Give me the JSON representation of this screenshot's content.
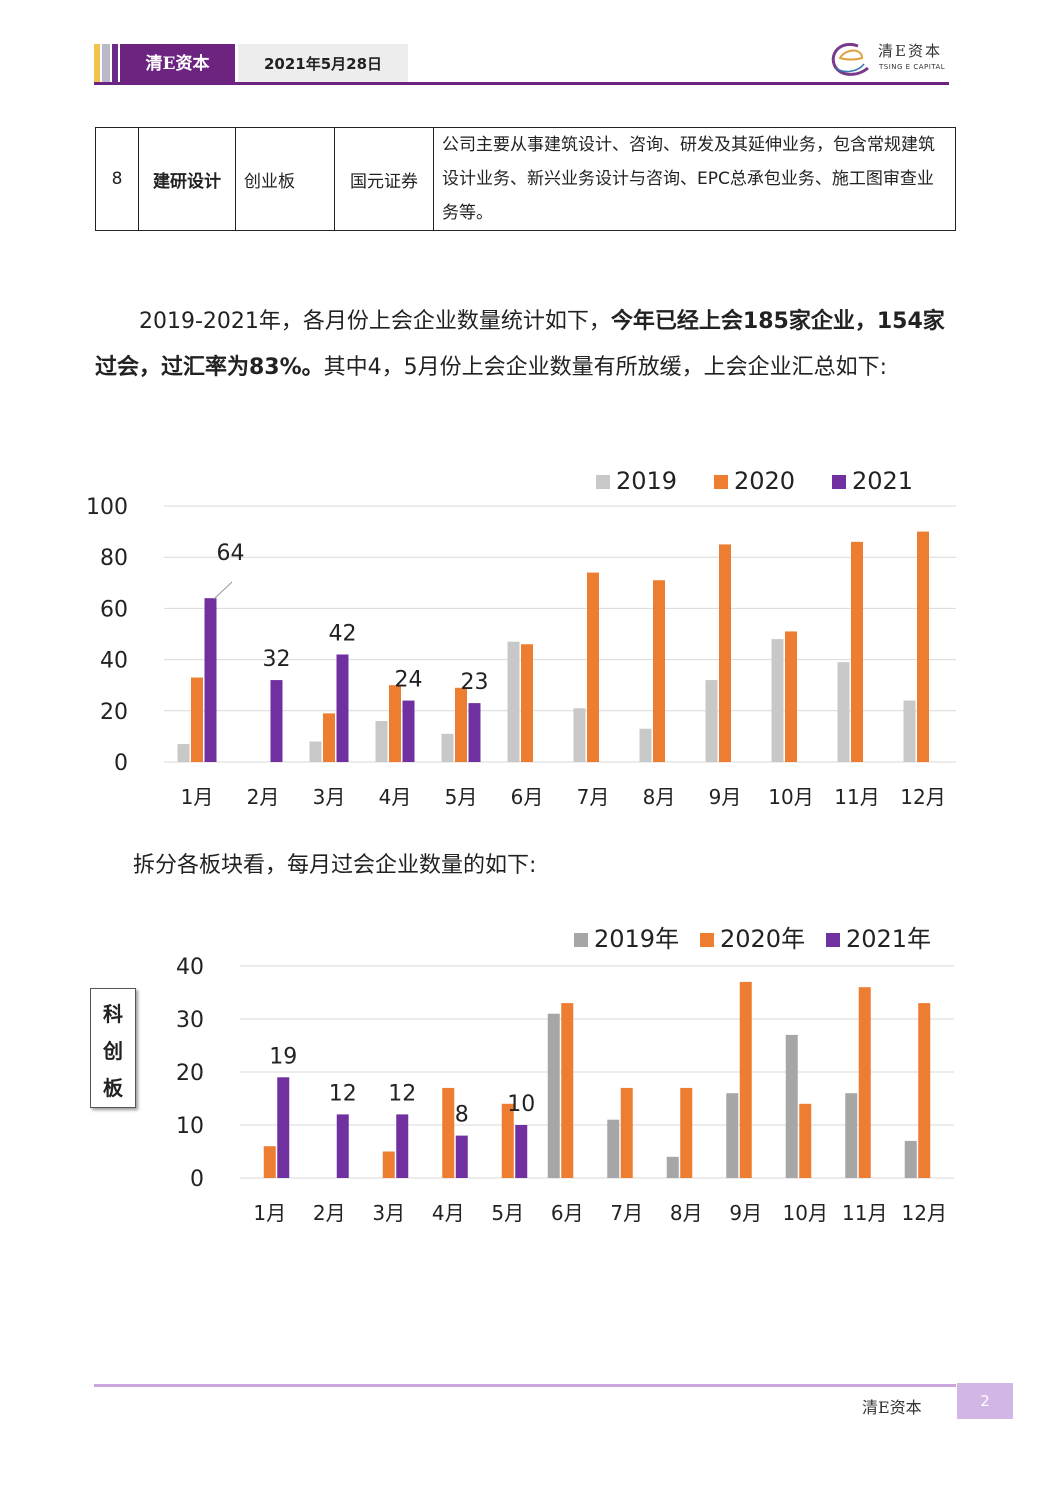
{
  "header": {
    "brand": "清E资本",
    "date": "2021年5月28日",
    "logo_cn": "清E资本",
    "logo_en": "TSING E CAPITAL"
  },
  "table_row": {
    "num": "8",
    "name": "建研设计",
    "board": "创业板",
    "broker": "国元证券",
    "desc": "公司主要从事建筑设计、咨询、研发及其延伸业务，包含常规建筑设计业务、新兴业务设计与咨询、EPC总承包业务、施工图审查业务等。"
  },
  "para1": {
    "lead": "2019-2021年，各月份上会企业数量统计如下，",
    "bold": "今年已经上会185家企业，154家过会，过汇率为83%。",
    "tail": "其中4，5月份上会企业数量有所放缓，上会企业汇总如下:"
  },
  "para2": {
    "text": "拆分各板块看，每月过会企业数量的如下:"
  },
  "side_label": [
    "科",
    "创",
    "板"
  ],
  "footer": {
    "brand": "清E资本",
    "page": "2"
  },
  "colors": {
    "s2019": "#c8c8c8",
    "s2019b": "#a6a6a6",
    "s2020": "#ed7d31",
    "s2021": "#7030a0",
    "grid": "#d9d9d9",
    "brand": "#6c2480"
  },
  "chart_data": [
    {
      "type": "bar",
      "title": "",
      "categories": [
        "1月",
        "2月",
        "3月",
        "4月",
        "5月",
        "6月",
        "7月",
        "8月",
        "9月",
        "10月",
        "11月",
        "12月"
      ],
      "series": [
        {
          "name": "2019",
          "values": [
            7,
            0,
            8,
            16,
            11,
            47,
            21,
            13,
            32,
            48,
            39,
            24
          ]
        },
        {
          "name": "2020",
          "values": [
            33,
            0,
            19,
            30,
            29,
            46,
            74,
            71,
            85,
            51,
            86,
            90
          ]
        },
        {
          "name": "2021",
          "values": [
            64,
            32,
            42,
            24,
            23,
            null,
            null,
            null,
            null,
            null,
            null,
            null
          ]
        }
      ],
      "data_labels": {
        "series": "2021",
        "values": [
          64,
          32,
          42,
          24,
          23
        ]
      },
      "ylim": [
        0,
        100
      ],
      "yticks": [
        0,
        20,
        40,
        60,
        80,
        100
      ],
      "legend": "top-right",
      "grid": true
    },
    {
      "type": "bar",
      "title": "",
      "categories": [
        "1月",
        "2月",
        "3月",
        "4月",
        "5月",
        "6月",
        "7月",
        "8月",
        "9月",
        "10月",
        "11月",
        "12月"
      ],
      "series": [
        {
          "name": "2019年",
          "values": [
            0,
            0,
            0,
            0,
            0,
            31,
            11,
            4,
            16,
            27,
            16,
            7
          ]
        },
        {
          "name": "2020年",
          "values": [
            6,
            0,
            5,
            17,
            14,
            33,
            17,
            17,
            37,
            14,
            36,
            33
          ]
        },
        {
          "name": "2021年",
          "values": [
            19,
            12,
            12,
            8,
            10,
            null,
            null,
            null,
            null,
            null,
            null,
            null
          ]
        }
      ],
      "data_labels": {
        "series": "2021年",
        "values": [
          19,
          12,
          12,
          8,
          10
        ]
      },
      "ylim": [
        0,
        40
      ],
      "yticks": [
        0,
        10,
        20,
        30,
        40
      ],
      "legend": "top-right",
      "grid": true
    }
  ]
}
